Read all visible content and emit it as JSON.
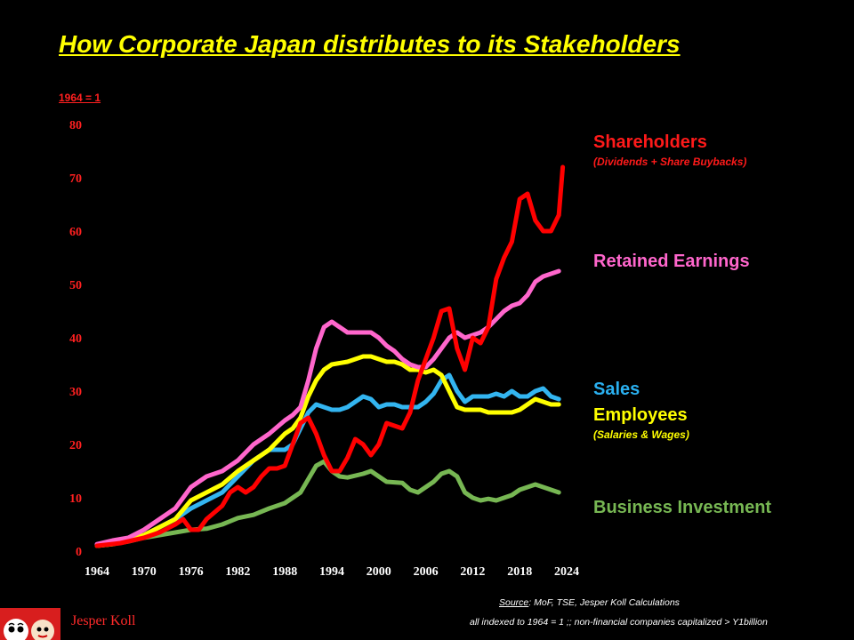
{
  "title": "How Corporate Japan distributes to its Stakeholders",
  "unit_note": "1964 = 1",
  "source_label": "Source",
  "source_text": ": MoF, TSE, Jesper Koll Calculations",
  "footnote": "all indexed to 1964 = 1  ;;  non-financial companies capitalized > Y1billion",
  "author": "Jesper Koll",
  "legend": {
    "shareholders": "Shareholders",
    "shareholders_sub": "(Dividends + Share Buybacks)",
    "retained": "Retained Earnings",
    "sales": "Sales",
    "employees": "Employees",
    "employees_sub": "(Salaries & Wages)",
    "business": "Business Investment"
  },
  "colors": {
    "shareholders": "#ff0000",
    "retained": "#ff66cc",
    "sales": "#33b5f0",
    "employees": "#ffff00",
    "business": "#77b753"
  },
  "chart_data": {
    "type": "line",
    "title": "How Corporate Japan distributes to its Stakeholders",
    "ylabel": "1964 = 1",
    "xlim": [
      1964,
      2024
    ],
    "ylim": [
      0,
      80
    ],
    "x_ticks": [
      1964,
      1970,
      1976,
      1982,
      1988,
      1994,
      2000,
      2006,
      2012,
      2018,
      2024
    ],
    "y_ticks": [
      0,
      10,
      20,
      30,
      40,
      50,
      60,
      70,
      80
    ],
    "grid": false,
    "legend_position": "right",
    "series": [
      {
        "name": "Business Investment",
        "key": "business",
        "points": [
          [
            1964,
            1
          ],
          [
            1966,
            1.3
          ],
          [
            1968,
            1.8
          ],
          [
            1970,
            2.5
          ],
          [
            1972,
            3
          ],
          [
            1974,
            3.5
          ],
          [
            1976,
            4
          ],
          [
            1978,
            4.2
          ],
          [
            1980,
            5
          ],
          [
            1982,
            6.2
          ],
          [
            1984,
            6.8
          ],
          [
            1986,
            8
          ],
          [
            1988,
            9
          ],
          [
            1990,
            11
          ],
          [
            1991,
            13.5
          ],
          [
            1992,
            16
          ],
          [
            1993,
            16.8
          ],
          [
            1994,
            15
          ],
          [
            1995,
            14
          ],
          [
            1996,
            13.8
          ],
          [
            1998,
            14.5
          ],
          [
            1999,
            15
          ],
          [
            2000,
            14
          ],
          [
            2001,
            13
          ],
          [
            2003,
            12.8
          ],
          [
            2004,
            11.5
          ],
          [
            2005,
            11
          ],
          [
            2006,
            12
          ],
          [
            2007,
            13
          ],
          [
            2008,
            14.5
          ],
          [
            2009,
            15
          ],
          [
            2010,
            14
          ],
          [
            2011,
            11
          ],
          [
            2012,
            10
          ],
          [
            2013,
            9.5
          ],
          [
            2014,
            9.8
          ],
          [
            2015,
            9.5
          ],
          [
            2016,
            10
          ],
          [
            2017,
            10.5
          ],
          [
            2018,
            11.5
          ],
          [
            2019,
            12
          ],
          [
            2020,
            12.5
          ],
          [
            2021,
            12
          ],
          [
            2022,
            11.5
          ],
          [
            2023,
            11
          ]
        ]
      },
      {
        "name": "Sales",
        "key": "sales",
        "points": [
          [
            1964,
            1.2
          ],
          [
            1967,
            2
          ],
          [
            1970,
            3
          ],
          [
            1972,
            4.5
          ],
          [
            1974,
            6
          ],
          [
            1976,
            8
          ],
          [
            1978,
            9.5
          ],
          [
            1980,
            11
          ],
          [
            1982,
            14
          ],
          [
            1984,
            17
          ],
          [
            1986,
            19
          ],
          [
            1988,
            19
          ],
          [
            1989,
            20
          ],
          [
            1990,
            23
          ],
          [
            1991,
            26
          ],
          [
            1992,
            27.5
          ],
          [
            1993,
            27
          ],
          [
            1994,
            26.5
          ],
          [
            1995,
            26.5
          ],
          [
            1996,
            27
          ],
          [
            1997,
            28
          ],
          [
            1998,
            29
          ],
          [
            1999,
            28.5
          ],
          [
            2000,
            27
          ],
          [
            2001,
            27.5
          ],
          [
            2002,
            27.5
          ],
          [
            2003,
            27
          ],
          [
            2004,
            27
          ],
          [
            2005,
            27
          ],
          [
            2006,
            28
          ],
          [
            2007,
            29.5
          ],
          [
            2008,
            32
          ],
          [
            2009,
            33
          ],
          [
            2010,
            30
          ],
          [
            2011,
            28
          ],
          [
            2012,
            29
          ],
          [
            2013,
            29
          ],
          [
            2014,
            29
          ],
          [
            2015,
            29.5
          ],
          [
            2016,
            29
          ],
          [
            2017,
            30
          ],
          [
            2018,
            29
          ],
          [
            2019,
            29
          ],
          [
            2020,
            30
          ],
          [
            2021,
            30.5
          ],
          [
            2022,
            29
          ],
          [
            2023,
            28.5
          ]
        ]
      },
      {
        "name": "Employees",
        "key": "employees",
        "points": [
          [
            1964,
            1
          ],
          [
            1966,
            1.3
          ],
          [
            1968,
            2
          ],
          [
            1970,
            3
          ],
          [
            1972,
            4.5
          ],
          [
            1974,
            6
          ],
          [
            1976,
            9.5
          ],
          [
            1978,
            11
          ],
          [
            1980,
            12.5
          ],
          [
            1982,
            15
          ],
          [
            1984,
            17
          ],
          [
            1986,
            19
          ],
          [
            1988,
            22
          ],
          [
            1989,
            23
          ],
          [
            1990,
            25
          ],
          [
            1991,
            29
          ],
          [
            1992,
            32
          ],
          [
            1993,
            34
          ],
          [
            1994,
            35
          ],
          [
            1996,
            35.5
          ],
          [
            1998,
            36.5
          ],
          [
            1999,
            36.5
          ],
          [
            2000,
            36
          ],
          [
            2001,
            35.5
          ],
          [
            2002,
            35.5
          ],
          [
            2003,
            35
          ],
          [
            2004,
            34
          ],
          [
            2005,
            34
          ],
          [
            2006,
            33.5
          ],
          [
            2007,
            34
          ],
          [
            2008,
            33
          ],
          [
            2009,
            30
          ],
          [
            2010,
            27
          ],
          [
            2011,
            26.5
          ],
          [
            2012,
            26.5
          ],
          [
            2013,
            26.5
          ],
          [
            2014,
            26
          ],
          [
            2015,
            26
          ],
          [
            2016,
            26
          ],
          [
            2017,
            26
          ],
          [
            2018,
            26.5
          ],
          [
            2019,
            27.5
          ],
          [
            2020,
            28.5
          ],
          [
            2021,
            28
          ],
          [
            2022,
            27.5
          ],
          [
            2023,
            27.5
          ]
        ]
      },
      {
        "name": "Retained Earnings",
        "key": "retained",
        "points": [
          [
            1964,
            1.3
          ],
          [
            1966,
            2
          ],
          [
            1968,
            2.5
          ],
          [
            1970,
            4
          ],
          [
            1972,
            6
          ],
          [
            1974,
            8
          ],
          [
            1976,
            12
          ],
          [
            1978,
            14
          ],
          [
            1980,
            15
          ],
          [
            1982,
            17
          ],
          [
            1984,
            20
          ],
          [
            1986,
            22
          ],
          [
            1988,
            24.5
          ],
          [
            1989,
            25.5
          ],
          [
            1990,
            27
          ],
          [
            1991,
            32
          ],
          [
            1992,
            38
          ],
          [
            1993,
            42
          ],
          [
            1994,
            43
          ],
          [
            1995,
            42
          ],
          [
            1996,
            41
          ],
          [
            1997,
            41
          ],
          [
            1998,
            41
          ],
          [
            1999,
            41
          ],
          [
            2000,
            40
          ],
          [
            2001,
            38.5
          ],
          [
            2002,
            37.5
          ],
          [
            2003,
            36
          ],
          [
            2004,
            35
          ],
          [
            2005,
            34.5
          ],
          [
            2006,
            34.5
          ],
          [
            2007,
            36
          ],
          [
            2008,
            38
          ],
          [
            2009,
            40
          ],
          [
            2010,
            41
          ],
          [
            2011,
            40
          ],
          [
            2012,
            40.5
          ],
          [
            2013,
            41
          ],
          [
            2014,
            42
          ],
          [
            2015,
            43.5
          ],
          [
            2016,
            45
          ],
          [
            2017,
            46
          ],
          [
            2018,
            46.5
          ],
          [
            2019,
            48
          ],
          [
            2020,
            50.5
          ],
          [
            2021,
            51.5
          ],
          [
            2022,
            52
          ],
          [
            2023,
            52.5
          ]
        ]
      },
      {
        "name": "Shareholders",
        "key": "shareholders",
        "points": [
          [
            1964,
            1
          ],
          [
            1967,
            1.5
          ],
          [
            1970,
            2.5
          ],
          [
            1972,
            3.5
          ],
          [
            1974,
            5
          ],
          [
            1975,
            6
          ],
          [
            1976,
            4
          ],
          [
            1977,
            4
          ],
          [
            1978,
            6
          ],
          [
            1980,
            8.5
          ],
          [
            1981,
            11
          ],
          [
            1982,
            12
          ],
          [
            1983,
            11
          ],
          [
            1984,
            12
          ],
          [
            1985,
            14
          ],
          [
            1986,
            15.5
          ],
          [
            1987,
            15.5
          ],
          [
            1988,
            16
          ],
          [
            1989,
            20
          ],
          [
            1990,
            24
          ],
          [
            1991,
            25
          ],
          [
            1992,
            22
          ],
          [
            1993,
            18
          ],
          [
            1994,
            15
          ],
          [
            1995,
            15
          ],
          [
            1996,
            17.5
          ],
          [
            1997,
            21
          ],
          [
            1998,
            20
          ],
          [
            1999,
            18
          ],
          [
            2000,
            20
          ],
          [
            2001,
            24
          ],
          [
            2002,
            23.5
          ],
          [
            2003,
            23
          ],
          [
            2004,
            26
          ],
          [
            2005,
            32
          ],
          [
            2006,
            36
          ],
          [
            2007,
            40
          ],
          [
            2008,
            45
          ],
          [
            2009,
            45.5
          ],
          [
            2010,
            38
          ],
          [
            2011,
            34
          ],
          [
            2012,
            40
          ],
          [
            2013,
            39
          ],
          [
            2014,
            42
          ],
          [
            2015,
            51
          ],
          [
            2016,
            55
          ],
          [
            2017,
            58
          ],
          [
            2018,
            66
          ],
          [
            2019,
            67
          ],
          [
            2020,
            62
          ],
          [
            2021,
            60
          ],
          [
            2022,
            60
          ],
          [
            2023,
            63
          ],
          [
            2023.5,
            72
          ]
        ]
      }
    ]
  }
}
